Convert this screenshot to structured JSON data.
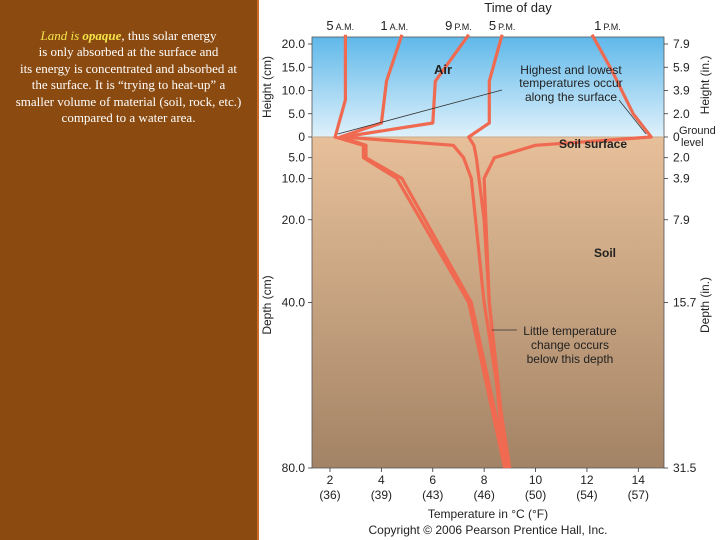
{
  "caption": {
    "lines": [
      {
        "pre": "",
        "hl1": "Land",
        "mid": " is ",
        "hl2": "opaque",
        "post": ", thus solar energy"
      },
      {
        "pre": "is only absorbed at the surface and",
        "hl1": "",
        "mid": "",
        "hl2": "",
        "post": ""
      },
      {
        "pre": "its energy is concentrated and absorbed at",
        "hl1": "",
        "mid": "",
        "hl2": "",
        "post": ""
      },
      {
        "pre": "the surface. It is “trying to heat-up” a",
        "hl1": "",
        "mid": "",
        "hl2": "",
        "post": ""
      },
      {
        "pre": "smaller volume of material (soil, rock, etc.)",
        "hl1": "",
        "mid": "",
        "hl2": "",
        "post": ""
      },
      {
        "pre": "compared to a water area.",
        "hl1": "",
        "mid": "",
        "hl2": "",
        "post": ""
      }
    ]
  },
  "colors": {
    "background": "#8b4a10",
    "caption_text": "#ffffff",
    "caption_highlight": "#f5e64a",
    "sky_top": "#5fb8ea",
    "sky_bottom": "#dff1fb",
    "soil_top": "#e7c09a",
    "soil_bottom": "#a38365",
    "profile_line": "#ef6a50"
  },
  "chart_data": {
    "type": "line",
    "title": "Time of day",
    "xlabel": "Temperature in °C (°F)",
    "x_ticks": [
      {
        "value": 2,
        "c": "2",
        "f": "(36)"
      },
      {
        "value": 4,
        "c": "4",
        "f": "(39)"
      },
      {
        "value": 6,
        "c": "6",
        "f": "(43)"
      },
      {
        "value": 8,
        "c": "8",
        "f": "(46)"
      },
      {
        "value": 10,
        "c": "10",
        "f": "(50)"
      },
      {
        "value": 12,
        "c": "12",
        "f": "(54)"
      },
      {
        "value": 14,
        "c": "14",
        "f": "(57)"
      }
    ],
    "xlim": [
      1.3,
      15
    ],
    "ylabel_height_left": "Height (cm)",
    "ylabel_depth_left": "Depth (cm)",
    "ylabel_height_right": "Height (in.)",
    "ylabel_depth_right": "Depth (in.)",
    "height_ticks": [
      {
        "cm": 20,
        "label": "20.0",
        "in": "7.9"
      },
      {
        "cm": 15,
        "label": "15.0",
        "in": "5.9"
      },
      {
        "cm": 10,
        "label": "10.0",
        "in": "3.9"
      },
      {
        "cm": 5,
        "label": "5.0",
        "in": "2.0"
      },
      {
        "cm": 0,
        "label": "0",
        "in": "0"
      }
    ],
    "depth_ticks": [
      {
        "cm": 5,
        "label": "5.0",
        "in": "2.0"
      },
      {
        "cm": 10,
        "label": "10.0",
        "in": "3.9"
      },
      {
        "cm": 20,
        "label": "20.0",
        "in": "7.9"
      },
      {
        "cm": 40,
        "label": "40.0",
        "in": "15.7"
      },
      {
        "cm": 80,
        "label": "80.0",
        "in": "31.5"
      }
    ],
    "time_labels": [
      {
        "hour": "5",
        "ampm": "A.M.",
        "temp": 2.4
      },
      {
        "hour": "1",
        "ampm": "A.M.",
        "temp": 4.5
      },
      {
        "hour": "9",
        "ampm": "P.M.",
        "temp": 7.0
      },
      {
        "hour": "5",
        "ampm": "P.M.",
        "temp": 8.7
      },
      {
        "hour": "1",
        "ampm": "P.M.",
        "temp": 12.8
      }
    ],
    "series": [
      {
        "key": "5am",
        "points": [
          [
            2.6,
            22
          ],
          [
            2.6,
            8
          ],
          [
            2.2,
            0
          ],
          [
            3.3,
            -2
          ],
          [
            3.3,
            -5
          ],
          [
            4.6,
            -10
          ],
          [
            7.4,
            -40
          ],
          [
            8.8,
            -80
          ]
        ]
      },
      {
        "key": "1am",
        "points": [
          [
            4.8,
            22
          ],
          [
            4.2,
            12
          ],
          [
            4.0,
            3
          ],
          [
            2.4,
            0
          ],
          [
            3.4,
            -2
          ],
          [
            3.4,
            -5
          ],
          [
            4.8,
            -10
          ],
          [
            7.5,
            -40
          ],
          [
            8.9,
            -80
          ]
        ]
      },
      {
        "key": "9pm",
        "points": [
          [
            7.4,
            22
          ],
          [
            6.1,
            12
          ],
          [
            6.0,
            3
          ],
          [
            2.5,
            0
          ],
          [
            6.8,
            -2
          ],
          [
            7.2,
            -5
          ],
          [
            7.5,
            -10
          ],
          [
            8.0,
            -40
          ],
          [
            9.0,
            -80
          ]
        ]
      },
      {
        "key": "5pm",
        "points": [
          [
            8.7,
            22
          ],
          [
            8.2,
            12
          ],
          [
            8.2,
            3
          ],
          [
            7.4,
            0
          ],
          [
            7.6,
            -2
          ],
          [
            7.7,
            -5
          ],
          [
            8.0,
            -20
          ],
          [
            8.2,
            -40
          ],
          [
            8.9,
            -80
          ]
        ]
      },
      {
        "key": "1pm",
        "points": [
          [
            12.2,
            22
          ],
          [
            13.0,
            14
          ],
          [
            13.8,
            5
          ],
          [
            14.5,
            0
          ],
          [
            10.0,
            -2
          ],
          [
            8.4,
            -5
          ],
          [
            8.0,
            -10
          ],
          [
            8.2,
            -40
          ],
          [
            8.8,
            -80
          ]
        ]
      }
    ],
    "annotations": {
      "air": "Air",
      "soil_surface": "Soil surface",
      "soil": "Soil",
      "ground_level_1": "Ground",
      "ground_level_2": "level",
      "highest_1": "Highest and lowest",
      "highest_2": "temperatures occur",
      "highest_3": "along the surface",
      "little_1": "Little temperature",
      "little_2": "change occurs",
      "little_3": "below this depth"
    },
    "copyright": "Copyright © 2006 Pearson Prentice Hall, Inc."
  }
}
